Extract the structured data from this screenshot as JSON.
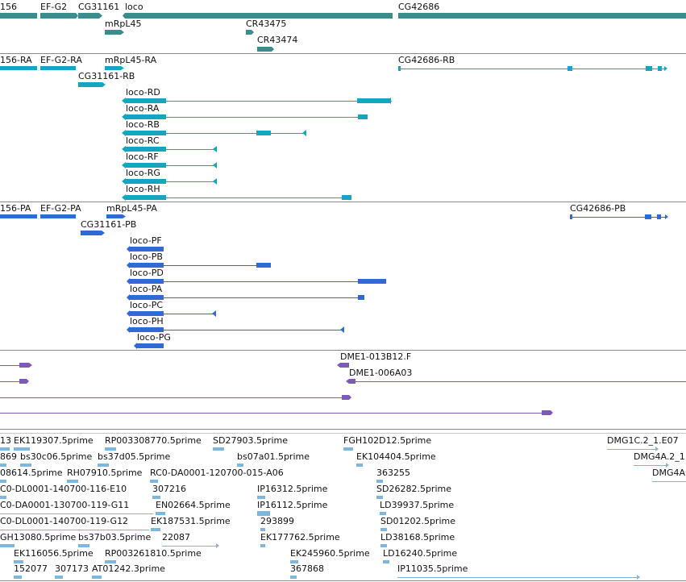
{
  "colors": {
    "gene": "#3b8c8c",
    "mrna": "#13a6c2",
    "cds": "#2f6bd6",
    "clone": "#7b5bb6",
    "est": "#7fb6de",
    "separator": "#8a8a8a"
  },
  "gene_track": {
    "labels": [
      "156",
      "EF-G2",
      "CG31161",
      "loco",
      "CG42686",
      "mRpL45",
      "CR43475",
      "CR43474"
    ]
  },
  "transcript_track": {
    "labels": [
      "156-RA",
      "EF-G2-RA",
      "mRpL45-RA",
      "CG42686-RB",
      "CG31161-RB",
      "loco-RD",
      "loco-RA",
      "loco-RB",
      "loco-RC",
      "loco-RF",
      "loco-RG",
      "loco-RH"
    ]
  },
  "cds_track": {
    "labels": [
      "156-PA",
      "EF-G2-PA",
      "mRpL45-PA",
      "CG42686-PB",
      "CG31161-PB",
      "loco-PF",
      "loco-PB",
      "loco-PD",
      "loco-PA",
      "loco-PC",
      "loco-PH",
      "loco-PG"
    ]
  },
  "clone_track": {
    "labels": [
      "DME1-013B12.F",
      "DME1-006A03"
    ]
  },
  "est_track": {
    "labels": [
      "13",
      "EK119307.5prime",
      "RP003308770.5prime",
      "SD27903.5prime",
      "FGH102D12.5prime",
      "DMG1C.2_1.E07",
      "869",
      "bs30c06.5prime",
      "bs37d05.5prime",
      "bs07a01.5prime",
      "EK104404.5prime",
      "DMG4A.2_1",
      "08614.5prime",
      "RH07910.5prime",
      "RC0-DA0001-120700-015-A06",
      "363255",
      "DMG4A",
      "C0-DL0001-140700-116-E10",
      "307216",
      "IP16312.5prime",
      "SD26282.5prime",
      "C0-DA0001-130700-119-G11",
      "EN02664.5prime",
      "IP16112.5prime",
      "LD39937.5prime",
      "C0-DL0001-140700-119-G12",
      "EK187531.5prime",
      "293899",
      "SD01202.5prime",
      "GH13080.5prime",
      "bs37b03.5prime",
      "22087",
      "EK177762.5prime",
      "LD38168.5prime",
      "EK116056.5prime",
      "RP003261810.5prime",
      "EK245960.5prime",
      "LD16240.5prime",
      "152077",
      "307173",
      "AT01242.3prime",
      "367868",
      "IP11035.5prime"
    ]
  }
}
